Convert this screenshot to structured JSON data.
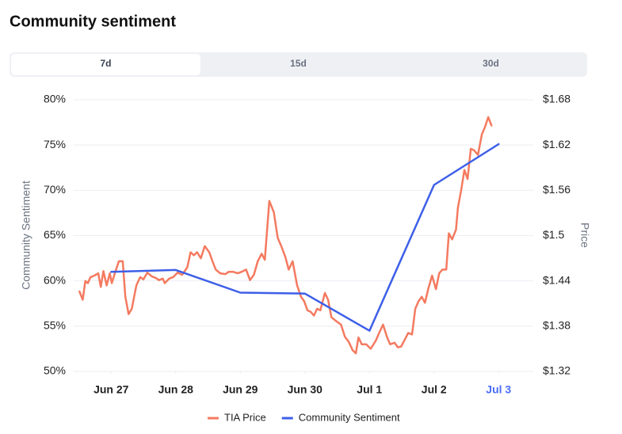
{
  "page": {
    "tabs": [
      "7d",
      "15d",
      "30d"
    ],
    "selected_tab": 0
  },
  "chart_data": {
    "type": "line",
    "title": "Community sentiment",
    "y_label": "Community Sentiment",
    "y2_label": "Price",
    "xlim": [
      -0.58,
      6.5
    ],
    "xticks": [
      {
        "value": 0,
        "label": "Jun 27"
      },
      {
        "value": 1,
        "label": "Jun 28"
      },
      {
        "value": 2,
        "label": "Jun 29"
      },
      {
        "value": 3,
        "label": "Jun 30"
      },
      {
        "value": 4,
        "label": "Jul 1"
      },
      {
        "value": 5,
        "label": "Jul 2"
      },
      {
        "value": 6,
        "label": "Jul 3"
      }
    ],
    "xtick_highlight": {
      "index": 6,
      "color": "#4a6cf7"
    },
    "ylim": [
      50,
      80
    ],
    "yticks": [
      {
        "value": 50,
        "label": "50%"
      },
      {
        "value": 55,
        "label": "55%"
      },
      {
        "value": 60,
        "label": "60%"
      },
      {
        "value": 65,
        "label": "65%"
      },
      {
        "value": 70,
        "label": "70%"
      },
      {
        "value": 75,
        "label": "75%"
      },
      {
        "value": 80,
        "label": "80%"
      }
    ],
    "y2lim": [
      1.32,
      1.68
    ],
    "y2ticks": [
      {
        "value": 1.32,
        "label": "$1.32"
      },
      {
        "value": 1.38,
        "label": "$1.38"
      },
      {
        "value": 1.44,
        "label": "$1.44"
      },
      {
        "value": 1.5,
        "label": "$1.5"
      },
      {
        "value": 1.56,
        "label": "$1.56"
      },
      {
        "value": 1.62,
        "label": "$1.62"
      },
      {
        "value": 1.68,
        "label": "$1.68"
      }
    ],
    "grid": true,
    "legend": "bottom",
    "series": [
      {
        "name": "TIA Price",
        "color": "#f47a60",
        "axis": "y2",
        "x": [
          -0.49,
          -0.44,
          -0.4,
          -0.36,
          -0.32,
          -0.26,
          -0.2,
          -0.16,
          -0.12,
          -0.07,
          -0.02,
          0.01,
          0.06,
          0.12,
          0.18,
          0.22,
          0.27,
          0.32,
          0.39,
          0.45,
          0.5,
          0.56,
          0.63,
          0.69,
          0.74,
          0.8,
          0.83,
          0.9,
          0.96,
          1.03,
          1.1,
          1.18,
          1.23,
          1.28,
          1.33,
          1.39,
          1.45,
          1.52,
          1.57,
          1.62,
          1.69,
          1.77,
          1.82,
          1.89,
          1.96,
          2.02,
          2.09,
          2.15,
          2.21,
          2.27,
          2.33,
          2.38,
          2.45,
          2.52,
          2.58,
          2.64,
          2.7,
          2.75,
          2.81,
          2.88,
          2.94,
          2.99,
          3.04,
          3.09,
          3.14,
          3.19,
          3.24,
          3.31,
          3.36,
          3.41,
          3.48,
          3.56,
          3.62,
          3.68,
          3.74,
          3.79,
          3.83,
          3.88,
          3.95,
          4.02,
          4.1,
          4.15,
          4.21,
          4.27,
          4.32,
          4.39,
          4.44,
          4.49,
          4.54,
          4.6,
          4.66,
          4.71,
          4.76,
          4.81,
          4.86,
          4.91,
          4.97,
          5.03,
          5.08,
          5.13,
          5.19,
          5.23,
          5.28,
          5.34,
          5.37,
          5.42,
          5.47,
          5.52,
          5.57,
          5.62,
          5.68,
          5.74,
          5.79,
          5.84,
          5.89
        ],
        "values": [
          1.426,
          1.415,
          1.44,
          1.437,
          1.445,
          1.447,
          1.45,
          1.432,
          1.453,
          1.434,
          1.45,
          1.437,
          1.451,
          1.466,
          1.466,
          1.419,
          1.396,
          1.403,
          1.434,
          1.445,
          1.442,
          1.451,
          1.446,
          1.444,
          1.441,
          1.443,
          1.437,
          1.443,
          1.445,
          1.451,
          1.448,
          1.458,
          1.478,
          1.474,
          1.478,
          1.47,
          1.486,
          1.478,
          1.466,
          1.455,
          1.45,
          1.449,
          1.452,
          1.452,
          1.45,
          1.452,
          1.455,
          1.441,
          1.448,
          1.466,
          1.476,
          1.468,
          1.546,
          1.531,
          1.497,
          1.485,
          1.471,
          1.455,
          1.466,
          1.434,
          1.419,
          1.413,
          1.401,
          1.399,
          1.394,
          1.403,
          1.401,
          1.424,
          1.415,
          1.392,
          1.387,
          1.382,
          1.366,
          1.359,
          1.348,
          1.344,
          1.365,
          1.356,
          1.356,
          1.35,
          1.361,
          1.371,
          1.382,
          1.366,
          1.356,
          1.358,
          1.352,
          1.353,
          1.361,
          1.371,
          1.369,
          1.403,
          1.413,
          1.419,
          1.411,
          1.429,
          1.447,
          1.429,
          1.45,
          1.455,
          1.455,
          1.503,
          1.495,
          1.508,
          1.537,
          1.56,
          1.587,
          1.575,
          1.615,
          1.613,
          1.607,
          1.634,
          1.644,
          1.657,
          1.646
        ]
      },
      {
        "name": "Community Sentiment",
        "color": "#3d5fe8",
        "x": [
          0,
          1,
          2,
          3,
          4,
          5,
          6
        ],
        "values": [
          61.0,
          61.2,
          58.7,
          58.6,
          54.5,
          70.6,
          75.1
        ]
      }
    ]
  }
}
